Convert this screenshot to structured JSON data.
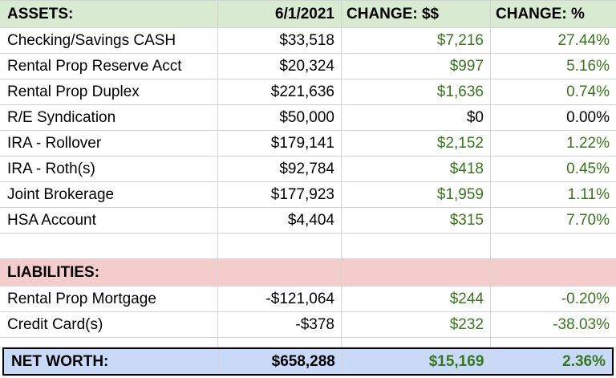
{
  "header": {
    "label": "ASSETS:",
    "date": "6/1/2021",
    "change_dollars": "CHANGE: $$",
    "change_pct": "CHANGE: %"
  },
  "assets": [
    {
      "name": "Checking/Savings CASH",
      "value": "$33,518",
      "change": "$7,216",
      "pct": "27.44%"
    },
    {
      "name": "Rental Prop Reserve Acct",
      "value": "$20,324",
      "change": "$997",
      "pct": "5.16%"
    },
    {
      "name": "Rental Prop Duplex",
      "value": "$221,636",
      "change": "$1,636",
      "pct": "0.74%"
    },
    {
      "name": "R/E Syndication",
      "value": "$50,000",
      "change": "$0",
      "pct": "0.00%"
    },
    {
      "name": "IRA - Rollover",
      "value": "$179,141",
      "change": "$2,152",
      "pct": "1.22%"
    },
    {
      "name": "IRA - Roth(s)",
      "value": "$92,784",
      "change": "$418",
      "pct": "0.45%"
    },
    {
      "name": "Joint Brokerage",
      "value": "$177,923",
      "change": "$1,959",
      "pct": "1.11%"
    },
    {
      "name": "HSA Account",
      "value": "$4,404",
      "change": "$315",
      "pct": "7.70%"
    }
  ],
  "liabilities_label": "LIABILITIES:",
  "liabilities": [
    {
      "name": "Rental Prop Mortgage",
      "value": "-$121,064",
      "change": "$244",
      "pct": "-0.20%"
    },
    {
      "name": "Credit Card(s)",
      "value": "-$378",
      "change": "$232",
      "pct": "-38.03%"
    }
  ],
  "net_worth": {
    "label": "NET WORTH:",
    "value": "$658,288",
    "change": "$15,169",
    "pct": "2.36%"
  },
  "colors": {
    "assets_header_bg": "#d9ead3",
    "liabilities_header_bg": "#f4cccc",
    "net_worth_bg": "#c9daf8",
    "positive_change": "#38761d"
  }
}
